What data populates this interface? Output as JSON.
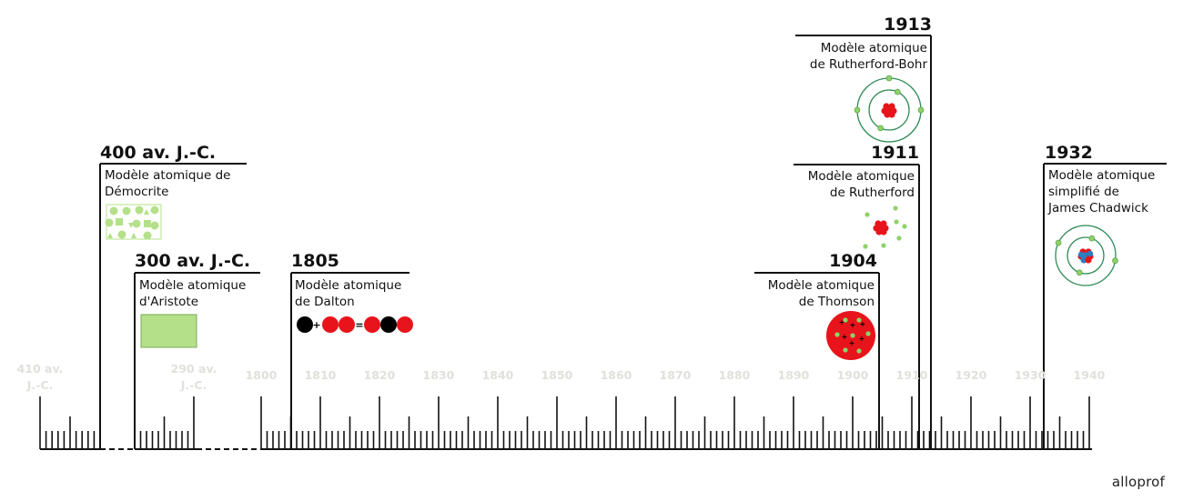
{
  "events": [
    {
      "year": "400 av. J.-C.",
      "lines": [
        "Modèle atomique de",
        "Démocrite"
      ]
    },
    {
      "year": "300 av. J.-C.",
      "lines": [
        "Modèle atomique",
        "d'Aristote"
      ]
    },
    {
      "year": "1805",
      "lines": [
        "Modèle atomique",
        "de Dalton"
      ]
    },
    {
      "year": "1904",
      "lines": [
        "Modèle atomique",
        "de Thomson"
      ]
    },
    {
      "year": "1911",
      "lines": [
        "Modèle atomique",
        "de Rutherford"
      ]
    },
    {
      "year": "1913",
      "lines": [
        "Modèle atomique",
        "de Rutherford-Bohr"
      ]
    },
    {
      "year": "1932",
      "lines": [
        "Modèle atomique",
        "simplifié de",
        "James Chadwick"
      ]
    }
  ],
  "axis_labels": {
    "bc_start": [
      "410 av.",
      "J.-C."
    ],
    "bc_end": [
      "290 av.",
      "J.-C."
    ],
    "decades": [
      "1800",
      "1810",
      "1820",
      "1830",
      "1840",
      "1850",
      "1860",
      "1870",
      "1880",
      "1890",
      "1900",
      "1910",
      "1920",
      "1930",
      "1940"
    ]
  },
  "symbols": {
    "plus": "+",
    "equals": "=",
    "thomson_charge": "+"
  },
  "brand": "alloprof",
  "colors": {
    "text": "#111111",
    "axis": "#111111",
    "tick_label": "#e2e0dc",
    "green_light": "#b5e08a",
    "green_orbit": "#2e8b57",
    "electron": "#8fd16a",
    "red": "#e8141b",
    "neutron": "#2a7fc1"
  }
}
